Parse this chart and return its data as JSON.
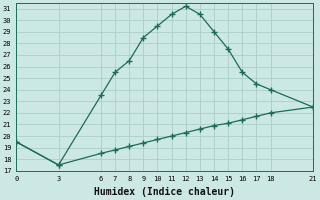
{
  "background_color": "#cce8e4",
  "grid_color": "#aaceca",
  "line_color": "#1a6b5a",
  "xlabel": "Humidex (Indice chaleur)",
  "upper_x": [
    0,
    3,
    6,
    7,
    8,
    9,
    10,
    11,
    12,
    13,
    14,
    15,
    16,
    17,
    18,
    21
  ],
  "upper_y": [
    19.5,
    17.5,
    23.5,
    25.5,
    26.5,
    28.5,
    29.5,
    30.5,
    31.2,
    30.5,
    29.0,
    27.5,
    25.5,
    24.5,
    24.0,
    22.5
  ],
  "lower_x": [
    0,
    3,
    6,
    7,
    8,
    9,
    10,
    11,
    12,
    13,
    14,
    15,
    16,
    17,
    18,
    21
  ],
  "lower_y": [
    19.5,
    17.5,
    18.5,
    18.8,
    19.1,
    19.4,
    19.7,
    20.0,
    20.3,
    20.6,
    20.9,
    21.1,
    21.4,
    21.7,
    22.0,
    22.5
  ],
  "xlim": [
    0,
    21
  ],
  "ylim": [
    17,
    31.5
  ],
  "xticks": [
    0,
    3,
    6,
    7,
    8,
    9,
    10,
    11,
    12,
    13,
    14,
    15,
    16,
    17,
    18,
    21
  ],
  "yticks": [
    17,
    18,
    19,
    20,
    21,
    22,
    23,
    24,
    25,
    26,
    27,
    28,
    29,
    30,
    31
  ],
  "marker": "+",
  "markersize": 4,
  "markeredgewidth": 1.0,
  "linewidth": 0.9,
  "xlabel_fontsize": 7,
  "tick_fontsize": 5
}
